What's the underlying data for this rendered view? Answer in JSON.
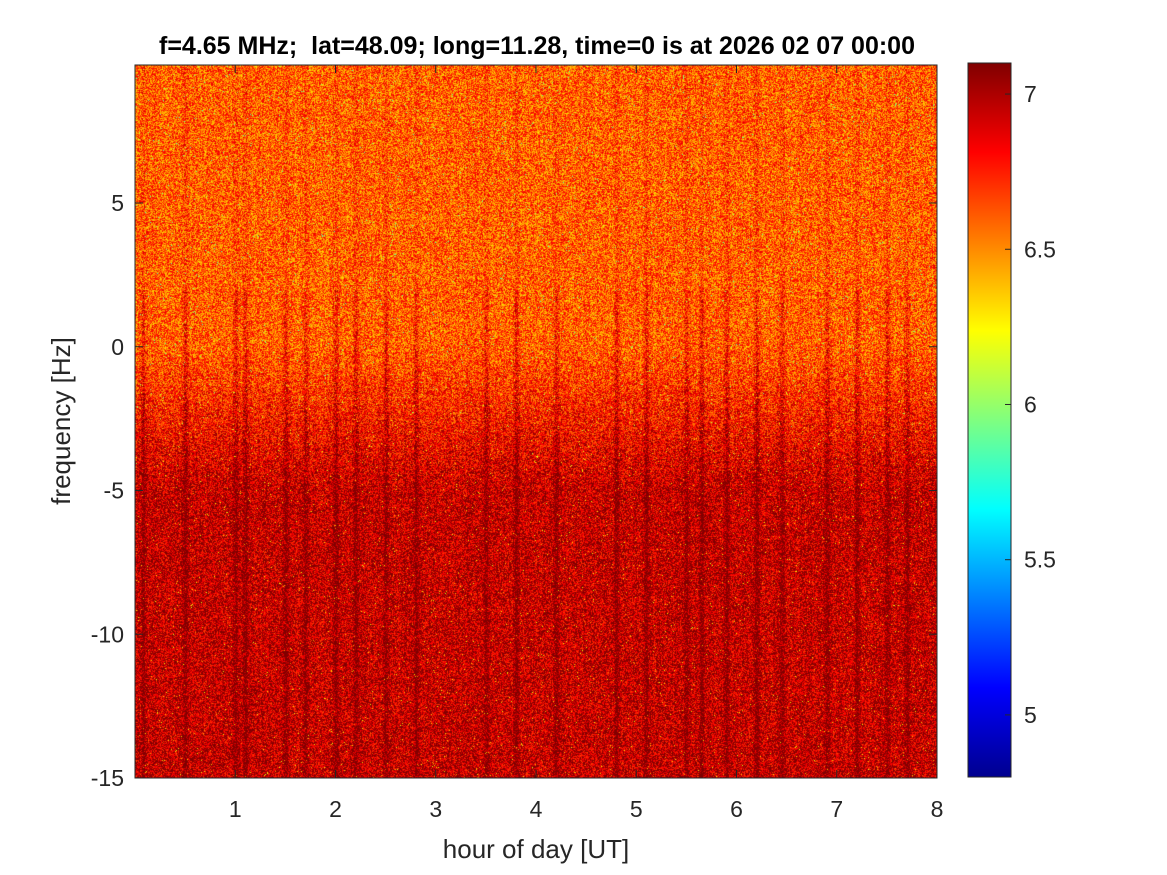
{
  "chart_data": {
    "type": "heatmap",
    "title": "f=4.65 MHz;  lat=48.09; long=11.28, time=0 is at 2026 02 07 00:00",
    "xlabel": "hour of day [UT]",
    "ylabel": "frequency [Hz]",
    "xlim": [
      0,
      8
    ],
    "ylim": [
      -15,
      9.8
    ],
    "x_ticks": [
      1,
      2,
      3,
      4,
      5,
      6,
      7,
      8
    ],
    "y_ticks": [
      -15,
      -10,
      -5,
      0,
      5
    ],
    "colorbar": {
      "colormap": "jet",
      "clim": [
        4.8,
        7.1
      ],
      "ticks": [
        5,
        5.5,
        6,
        6.5,
        7
      ]
    },
    "z_summary": {
      "background_mean": 6.75,
      "strong_region_y": [
        -15,
        -3
      ],
      "strong_region_value": 6.95,
      "weak_region_y": [
        0,
        9.8
      ],
      "weak_region_value": 6.6,
      "vertical_streak_hours": [
        0.08,
        0.5,
        1.0,
        1.1,
        1.5,
        1.7,
        2.0,
        2.2,
        2.5,
        2.8,
        3.5,
        3.8,
        4.2,
        4.8,
        5.1,
        5.5,
        5.65,
        5.9,
        6.2,
        6.45,
        6.9,
        7.2,
        7.5,
        7.7
      ]
    }
  }
}
